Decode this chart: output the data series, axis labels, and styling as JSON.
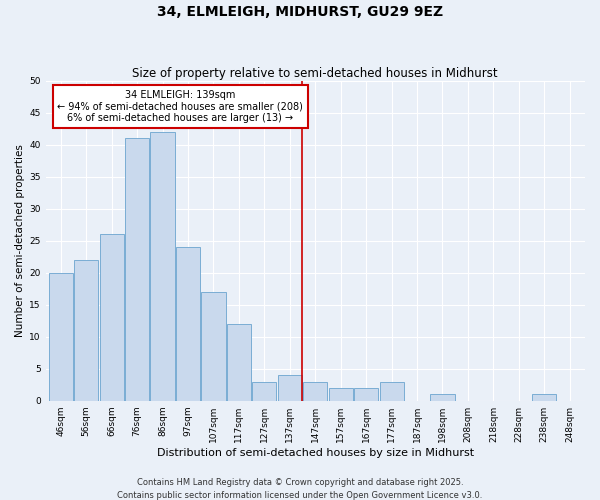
{
  "title": "34, ELMLEIGH, MIDHURST, GU29 9EZ",
  "subtitle": "Size of property relative to semi-detached houses in Midhurst",
  "xlabel": "Distribution of semi-detached houses by size in Midhurst",
  "ylabel": "Number of semi-detached properties",
  "bar_labels": [
    "46sqm",
    "56sqm",
    "66sqm",
    "76sqm",
    "86sqm",
    "97sqm",
    "107sqm",
    "117sqm",
    "127sqm",
    "137sqm",
    "147sqm",
    "157sqm",
    "167sqm",
    "177sqm",
    "187sqm",
    "198sqm",
    "208sqm",
    "218sqm",
    "228sqm",
    "238sqm",
    "248sqm"
  ],
  "bar_values": [
    20,
    22,
    26,
    41,
    42,
    24,
    17,
    12,
    3,
    4,
    3,
    2,
    2,
    3,
    0,
    1,
    0,
    0,
    0,
    1,
    0
  ],
  "bar_color": "#c9d9ed",
  "bar_edge_color": "#7aadd4",
  "background_color": "#eaf0f8",
  "grid_color": "#ffffff",
  "ylim": [
    0,
    50
  ],
  "yticks": [
    0,
    5,
    10,
    15,
    20,
    25,
    30,
    35,
    40,
    45,
    50
  ],
  "vline_x_index": 9,
  "vline_color": "#cc0000",
  "annotation_title": "34 ELMLEIGH: 139sqm",
  "annotation_line1": "← 94% of semi-detached houses are smaller (208)",
  "annotation_line2": "6% of semi-detached houses are larger (13) →",
  "annotation_box_color": "#cc0000",
  "footer1": "Contains HM Land Registry data © Crown copyright and database right 2025.",
  "footer2": "Contains public sector information licensed under the Open Government Licence v3.0.",
  "title_fontsize": 10,
  "subtitle_fontsize": 8.5,
  "xlabel_fontsize": 8,
  "ylabel_fontsize": 7.5,
  "tick_fontsize": 6.5,
  "footer_fontsize": 6,
  "annotation_fontsize": 7
}
